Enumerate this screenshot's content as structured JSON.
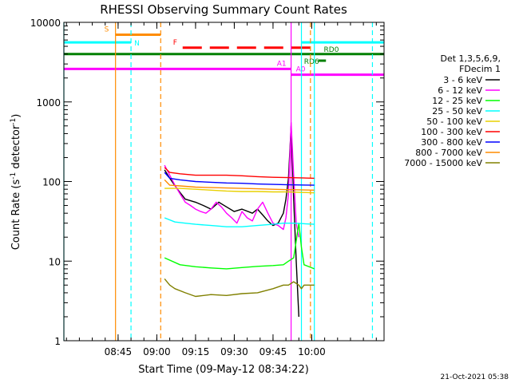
{
  "chart_data": {
    "type": "line",
    "title": "RHESSI Observing Summary Count Rates",
    "xlabel": "Start Time (09-May-12 08:34:22)",
    "ylabel_main": "Count Rate (s",
    "ylabel_sup1": "-1",
    "ylabel_mid": " detector",
    "ylabel_sup2": "-1",
    "ylabel_end": ")",
    "y_scale": "log",
    "ylim": [
      1,
      10000
    ],
    "xlim_min": [
      -11,
      113
    ],
    "x_ticks": [
      {
        "label": "08:45",
        "min": 10
      },
      {
        "label": "09:00",
        "min": 25
      },
      {
        "label": "09:15",
        "min": 40
      },
      {
        "label": "09:30",
        "min": 55
      },
      {
        "label": "09:45",
        "min": 70
      },
      {
        "label": "10:00",
        "min": 85
      }
    ],
    "y_ticks": [
      {
        "label": "1",
        "v": 1
      },
      {
        "label": "10",
        "v": 10
      },
      {
        "label": "100",
        "v": 100
      },
      {
        "label": "1000",
        "v": 1000
      },
      {
        "label": "10000",
        "v": 10000
      }
    ],
    "legend_header": [
      "Det 1,3,5,6,9,",
      "FDecim 1"
    ],
    "series": [
      {
        "name": "3 - 6 keV",
        "color": "#000000",
        "x": [
          28,
          30,
          33,
          36,
          40,
          43,
          46,
          49,
          52,
          55,
          58,
          62,
          64,
          66,
          68,
          70,
          72,
          74,
          75,
          76,
          77,
          78,
          79,
          80
        ],
        "y": [
          140,
          110,
          80,
          60,
          55,
          50,
          45,
          55,
          48,
          42,
          45,
          40,
          45,
          38,
          32,
          28,
          30,
          40,
          60,
          110,
          500,
          60,
          10,
          2
        ]
      },
      {
        "name": "6 - 12 keV",
        "color": "#ff00ff",
        "x": [
          28,
          30,
          32,
          34,
          36,
          38,
          40,
          42,
          44,
          46,
          48,
          50,
          52,
          54,
          56,
          58,
          60,
          62,
          64,
          66,
          68,
          70,
          72,
          74,
          75,
          76,
          77,
          78,
          79,
          80
        ],
        "y": [
          160,
          120,
          90,
          70,
          55,
          50,
          45,
          42,
          40,
          45,
          55,
          48,
          40,
          35,
          30,
          42,
          35,
          32,
          45,
          55,
          40,
          30,
          28,
          25,
          35,
          70,
          550,
          120,
          30,
          20
        ]
      },
      {
        "name": "12 - 25 keV",
        "color": "#00ff00",
        "x": [
          28,
          34,
          40,
          46,
          52,
          58,
          64,
          70,
          74,
          76,
          78,
          80,
          81,
          82,
          86
        ],
        "y": [
          11,
          9,
          8.5,
          8.2,
          8,
          8.3,
          8.6,
          8.8,
          9,
          10,
          11,
          30,
          15,
          9,
          8
        ]
      },
      {
        "name": "25 - 50 keV",
        "color": "#00ffff",
        "x": [
          28,
          32,
          36,
          40,
          46,
          52,
          58,
          64,
          70,
          74,
          78,
          86
        ],
        "y": [
          35,
          31,
          30,
          29,
          28,
          27,
          27,
          28,
          29,
          30,
          30,
          29
        ]
      },
      {
        "name": "50 - 100 keV",
        "color": "#e8d000",
        "x": [
          28,
          34,
          40,
          46,
          52,
          58,
          64,
          70,
          76,
          86
        ],
        "y": [
          82,
          82,
          80,
          78,
          76,
          75,
          75,
          74,
          74,
          72
        ]
      },
      {
        "name": "100 - 300 keV",
        "color": "#ff0000",
        "x": [
          28,
          30,
          34,
          40,
          46,
          52,
          58,
          64,
          70,
          76,
          86
        ],
        "y": [
          150,
          130,
          125,
          120,
          120,
          120,
          118,
          115,
          113,
          112,
          110
        ]
      },
      {
        "name": "300 - 800 keV",
        "color": "#0000ff",
        "x": [
          28,
          30,
          34,
          40,
          46,
          52,
          58,
          64,
          70,
          76,
          86
        ],
        "y": [
          130,
          110,
          105,
          100,
          98,
          96,
          95,
          93,
          92,
          91,
          90
        ]
      },
      {
        "name": "800 - 7000 keV",
        "color": "#ff8c00",
        "x": [
          28,
          30,
          34,
          40,
          46,
          52,
          58,
          64,
          70,
          76,
          86
        ],
        "y": [
          105,
          90,
          88,
          85,
          84,
          83,
          82,
          81,
          80,
          79,
          78
        ]
      },
      {
        "name": "7000 - 15000 keV",
        "color": "#808000",
        "x": [
          28,
          30,
          32,
          36,
          40,
          46,
          52,
          58,
          64,
          70,
          74,
          76,
          78,
          80,
          81,
          82,
          86
        ],
        "y": [
          6,
          5,
          4.5,
          4,
          3.6,
          3.8,
          3.7,
          3.9,
          4,
          4.5,
          5,
          5,
          5.5,
          5,
          4.5,
          5,
          5
        ]
      }
    ],
    "flag_lines": [
      {
        "label": "S",
        "color": "#ff8c00",
        "x_start": 9,
        "x_end": 26.5,
        "y": 7000,
        "dashed": false
      },
      {
        "label": "N",
        "color": "#00ffff",
        "x_start": -11,
        "x_end": 15,
        "y": 5600,
        "dashed": false
      },
      {
        "label": "F",
        "color": "#ff0000",
        "x_start": 35,
        "x_end": 84.5,
        "y": 4800,
        "dashed": true
      },
      {
        "label": "RD6",
        "color": "#008000",
        "x_start": -11,
        "x_end": 113,
        "y": 4000,
        "dashed": false
      },
      {
        "label": "A1",
        "color": "#ff00ff",
        "x_start": -11,
        "x_end": 77,
        "y": 2600,
        "dashed": false
      },
      {
        "label": "A0",
        "color": "#ff00ff",
        "x_start": 77,
        "x_end": 113,
        "y": 2200,
        "dashed": false
      }
    ],
    "flag_extra": [
      {
        "label": "RD0",
        "color": "#00ffff",
        "x_start": 81,
        "x_end": 113,
        "y": 5600
      },
      {
        "label": "",
        "color": "#008000",
        "x_start": 87.5,
        "x_end": 90.5,
        "y": 3300
      }
    ],
    "vertical_lines": [
      {
        "color": "#00ffff",
        "x": -11,
        "dashed": false
      },
      {
        "color": "#ff8c00",
        "x": 9,
        "dashed": false
      },
      {
        "color": "#00ffff",
        "x": 15,
        "dashed": true
      },
      {
        "color": "#ff8c00",
        "x": 26.5,
        "dashed": true
      },
      {
        "color": "#ff00ff",
        "x": 77,
        "dashed": false
      },
      {
        "color": "#00ffff",
        "x": 81,
        "dashed": false
      },
      {
        "color": "#ff8c00",
        "x": 84.5,
        "dashed": true
      },
      {
        "color": "#00ffff",
        "x": 86,
        "dashed": false
      },
      {
        "color": "#00ffff",
        "x": 108.5,
        "dashed": true
      }
    ],
    "timestamp": "21-Oct-2021 05:38"
  }
}
